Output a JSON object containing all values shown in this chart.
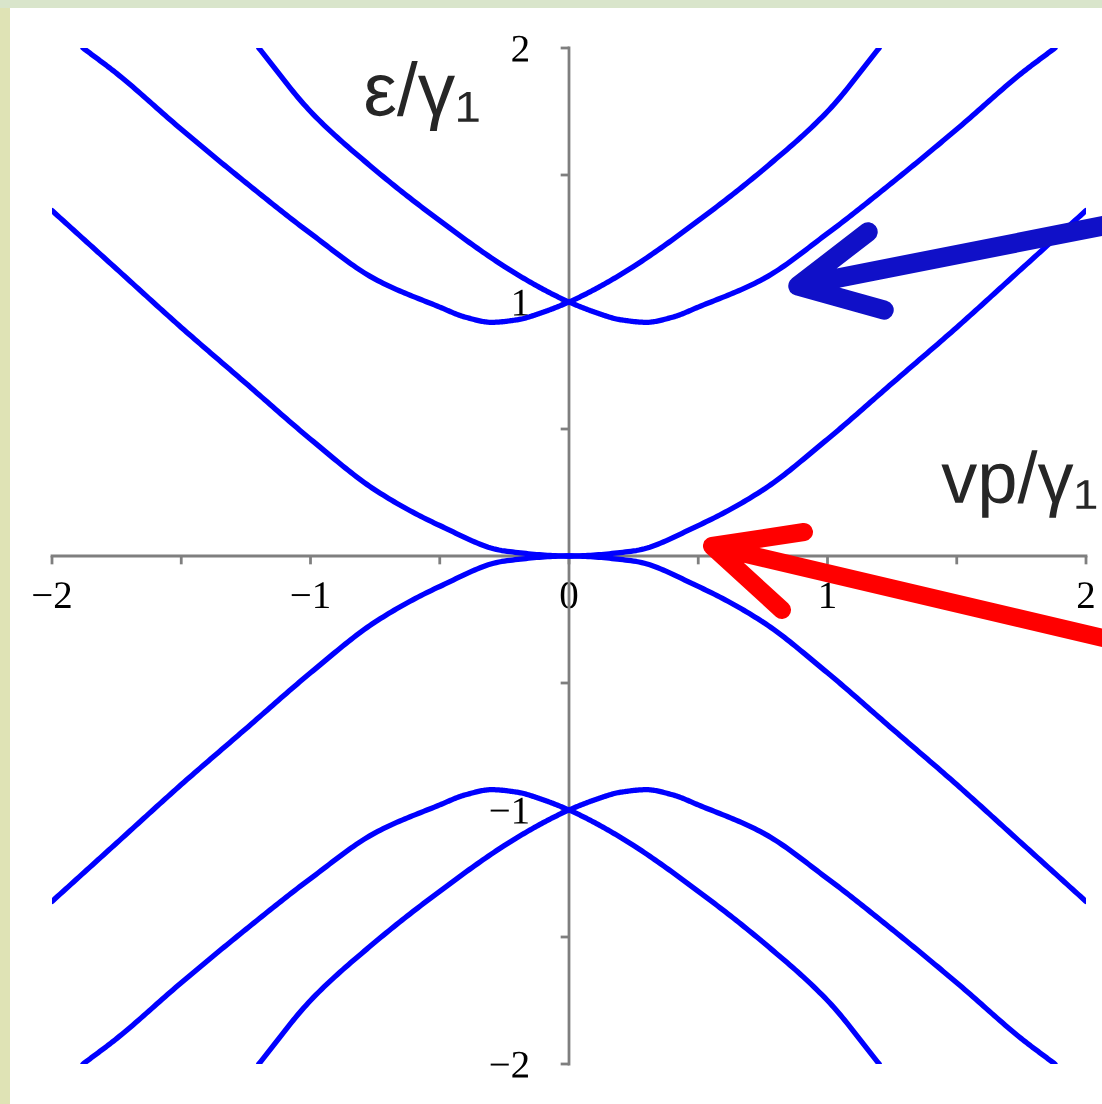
{
  "chart_data": {
    "type": "line",
    "xlabel": "vp/γ₁",
    "ylabel": "ε/γ₁",
    "xlim": [
      -2,
      2
    ],
    "ylim": [
      -2,
      2
    ],
    "xticks": [
      {
        "value": -2,
        "label": "−2"
      },
      {
        "value": -1.5,
        "label": null
      },
      {
        "value": -1,
        "label": "−1"
      },
      {
        "value": -0.5,
        "label": null
      },
      0,
      {
        "value": 0.5,
        "label": null
      },
      1,
      {
        "value": 1.5,
        "label": null
      },
      2
    ],
    "yticks": [
      {
        "value": -2,
        "label": "−2"
      },
      {
        "value": -1.5,
        "label": null
      },
      {
        "value": -1,
        "label": "−1"
      },
      {
        "value": -0.5,
        "label": null
      },
      {
        "value": 0.5,
        "label": null
      },
      1,
      {
        "value": 1.5,
        "label": null
      },
      2
    ],
    "grid": false,
    "marker": "none",
    "line_style": "solid",
    "series": [
      {
        "color": "#0000ff",
        "x": [
          -2,
          -1.75,
          -1.5,
          -1.25,
          -1,
          -0.75,
          -0.5,
          -0.25,
          0,
          0.25,
          0.5,
          0.75,
          1,
          1.25,
          1.5,
          1.75,
          2
        ],
        "values": [
          1.36,
          1.13,
          0.9,
          0.68,
          0.46,
          0.26,
          0.12,
          0.02,
          0,
          0.02,
          0.12,
          0.26,
          0.46,
          0.68,
          0.9,
          1.13,
          1.36
        ]
      },
      {
        "color": "#0000ff",
        "x": [
          -1.88,
          -1.75,
          -1.5,
          -1.25,
          -1,
          -0.75,
          -0.5,
          -0.4,
          -0.3,
          -0.2,
          -0.1,
          0,
          0.1,
          0.25,
          0.5,
          0.75,
          1,
          1.2
        ],
        "values": [
          2,
          1.9,
          1.68,
          1.47,
          1.27,
          1.09,
          0.98,
          0.94,
          0.92,
          0.93,
          0.96,
          1,
          1.05,
          1.14,
          1.32,
          1.52,
          1.75,
          2
        ]
      },
      {
        "color": "#0000ff",
        "x": [
          -1.2,
          -1,
          -0.75,
          -0.5,
          -0.25,
          -0.1,
          0,
          0.1,
          0.2,
          0.3,
          0.4,
          0.5,
          0.75,
          1,
          1.25,
          1.5,
          1.75,
          1.88
        ],
        "values": [
          2,
          1.75,
          1.52,
          1.32,
          1.14,
          1.05,
          1,
          0.96,
          0.93,
          0.92,
          0.94,
          0.98,
          1.09,
          1.27,
          1.47,
          1.68,
          1.9,
          2
        ]
      },
      {
        "color": "#0000ff",
        "x": [
          -2,
          -1.75,
          -1.5,
          -1.25,
          -1,
          -0.75,
          -0.5,
          -0.25,
          0,
          0.25,
          0.5,
          0.75,
          1,
          1.25,
          1.5,
          1.75,
          2
        ],
        "values": [
          -1.36,
          -1.13,
          -0.9,
          -0.68,
          -0.46,
          -0.26,
          -0.12,
          -0.02,
          0,
          -0.02,
          -0.12,
          -0.26,
          -0.46,
          -0.68,
          -0.9,
          -1.13,
          -1.36
        ]
      },
      {
        "color": "#0000ff",
        "x": [
          -1.88,
          -1.75,
          -1.5,
          -1.25,
          -1,
          -0.75,
          -0.5,
          -0.4,
          -0.3,
          -0.2,
          -0.1,
          0,
          0.1,
          0.25,
          0.5,
          0.75,
          1,
          1.2
        ],
        "values": [
          -2,
          -1.9,
          -1.68,
          -1.47,
          -1.27,
          -1.09,
          -0.98,
          -0.94,
          -0.92,
          -0.93,
          -0.96,
          -1,
          -1.05,
          -1.14,
          -1.32,
          -1.52,
          -1.75,
          -2
        ]
      },
      {
        "color": "#0000ff",
        "x": [
          -1.2,
          -1,
          -0.75,
          -0.5,
          -0.25,
          -0.1,
          0,
          0.1,
          0.2,
          0.3,
          0.4,
          0.5,
          0.75,
          1,
          1.25,
          1.5,
          1.75,
          1.88
        ],
        "values": [
          -2,
          -1.75,
          -1.52,
          -1.32,
          -1.14,
          -1.05,
          -1,
          -0.96,
          -0.93,
          -0.92,
          -0.94,
          -0.98,
          -1.09,
          -1.27,
          -1.47,
          -1.68,
          -1.9,
          -2
        ]
      }
    ]
  }
}
